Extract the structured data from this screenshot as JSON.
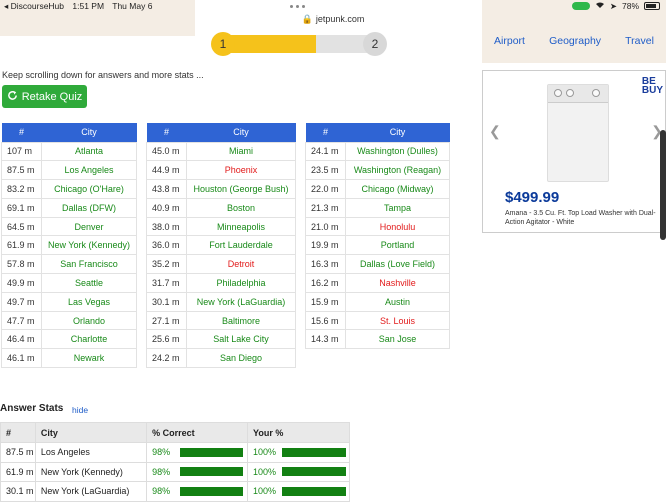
{
  "status": {
    "app": "◂ DiscourseHub",
    "time": "1:51 PM",
    "date": "Thu May 6",
    "url": "jetpunk.com",
    "battery": "78%"
  },
  "nav": {
    "items": [
      "Airport",
      "Geography",
      "Travel"
    ]
  },
  "progress": {
    "step1": "1",
    "step2": "2",
    "fraction": 0.6
  },
  "scroll_note": "Keep scrolling down for answers and more stats ...",
  "retake_label": "Retake Quiz",
  "tables": [
    {
      "headers": [
        "#",
        "City"
      ],
      "rows": [
        {
          "num": "107 m",
          "city": "Atlanta",
          "status": "correct"
        },
        {
          "num": "87.5 m",
          "city": "Los Angeles",
          "status": "correct"
        },
        {
          "num": "83.2 m",
          "city": "Chicago (O'Hare)",
          "status": "correct"
        },
        {
          "num": "69.1 m",
          "city": "Dallas (DFW)",
          "status": "correct"
        },
        {
          "num": "64.5 m",
          "city": "Denver",
          "status": "correct"
        },
        {
          "num": "61.9 m",
          "city": "New York (Kennedy)",
          "status": "correct"
        },
        {
          "num": "57.8 m",
          "city": "San Francisco",
          "status": "correct"
        },
        {
          "num": "49.9 m",
          "city": "Seattle",
          "status": "correct"
        },
        {
          "num": "49.7 m",
          "city": "Las Vegas",
          "status": "correct"
        },
        {
          "num": "47.7 m",
          "city": "Orlando",
          "status": "correct"
        },
        {
          "num": "46.4 m",
          "city": "Charlotte",
          "status": "correct"
        },
        {
          "num": "46.1 m",
          "city": "Newark",
          "status": "correct"
        }
      ]
    },
    {
      "headers": [
        "#",
        "City"
      ],
      "rows": [
        {
          "num": "45.0 m",
          "city": "Miami",
          "status": "correct"
        },
        {
          "num": "44.9 m",
          "city": "Phoenix",
          "status": "missed"
        },
        {
          "num": "43.8 m",
          "city": "Houston (George Bush)",
          "status": "correct"
        },
        {
          "num": "40.9 m",
          "city": "Boston",
          "status": "correct"
        },
        {
          "num": "38.0 m",
          "city": "Minneapolis",
          "status": "correct"
        },
        {
          "num": "36.0 m",
          "city": "Fort Lauderdale",
          "status": "correct"
        },
        {
          "num": "35.2 m",
          "city": "Detroit",
          "status": "missed"
        },
        {
          "num": "31.7 m",
          "city": "Philadelphia",
          "status": "correct"
        },
        {
          "num": "30.1 m",
          "city": "New York (LaGuardia)",
          "status": "correct"
        },
        {
          "num": "27.1 m",
          "city": "Baltimore",
          "status": "correct"
        },
        {
          "num": "25.6 m",
          "city": "Salt Lake City",
          "status": "correct"
        },
        {
          "num": "24.2 m",
          "city": "San Diego",
          "status": "correct"
        }
      ]
    },
    {
      "headers": [
        "#",
        "City"
      ],
      "rows": [
        {
          "num": "24.1 m",
          "city": "Washington (Dulles)",
          "status": "correct"
        },
        {
          "num": "23.5 m",
          "city": "Washington (Reagan)",
          "status": "correct"
        },
        {
          "num": "22.0 m",
          "city": "Chicago (Midway)",
          "status": "correct"
        },
        {
          "num": "21.3 m",
          "city": "Tampa",
          "status": "correct"
        },
        {
          "num": "21.0 m",
          "city": "Honolulu",
          "status": "missed"
        },
        {
          "num": "19.9 m",
          "city": "Portland",
          "status": "correct"
        },
        {
          "num": "16.3 m",
          "city": "Dallas (Love Field)",
          "status": "correct"
        },
        {
          "num": "16.2 m",
          "city": "Nashville",
          "status": "missed"
        },
        {
          "num": "15.9 m",
          "city": "Austin",
          "status": "correct"
        },
        {
          "num": "15.6 m",
          "city": "St. Louis",
          "status": "missed"
        },
        {
          "num": "14.3 m",
          "city": "San Jose",
          "status": "correct"
        }
      ]
    }
  ],
  "ad": {
    "logo_line1": "BE",
    "logo_line2": "BUY",
    "price": "$499.99",
    "description": "Amana - 3.5 Cu. Ft. Top Load Washer with Dual-Action Agitator - White"
  },
  "answer_stats": {
    "title": "Answer Stats",
    "hide_label": "hide",
    "headers": [
      "#",
      "City",
      "% Correct",
      "Your %"
    ],
    "rows": [
      {
        "num": "87.5 m",
        "city": "Los Angeles",
        "correct": "98%",
        "correct_value": 0.98,
        "yours": "100%",
        "yours_value": 1.0
      },
      {
        "num": "61.9 m",
        "city": "New York (Kennedy)",
        "correct": "98%",
        "correct_value": 0.98,
        "yours": "100%",
        "yours_value": 1.0
      },
      {
        "num": "30.1 m",
        "city": "New York (LaGuardia)",
        "correct": "98%",
        "correct_value": 0.98,
        "yours": "100%",
        "yours_value": 1.0
      }
    ]
  },
  "colors": {
    "header_blue": "#2f64d4",
    "correct_green": "#198a19",
    "missed_red": "#e21b1b",
    "retake_green": "#2faa3a"
  }
}
